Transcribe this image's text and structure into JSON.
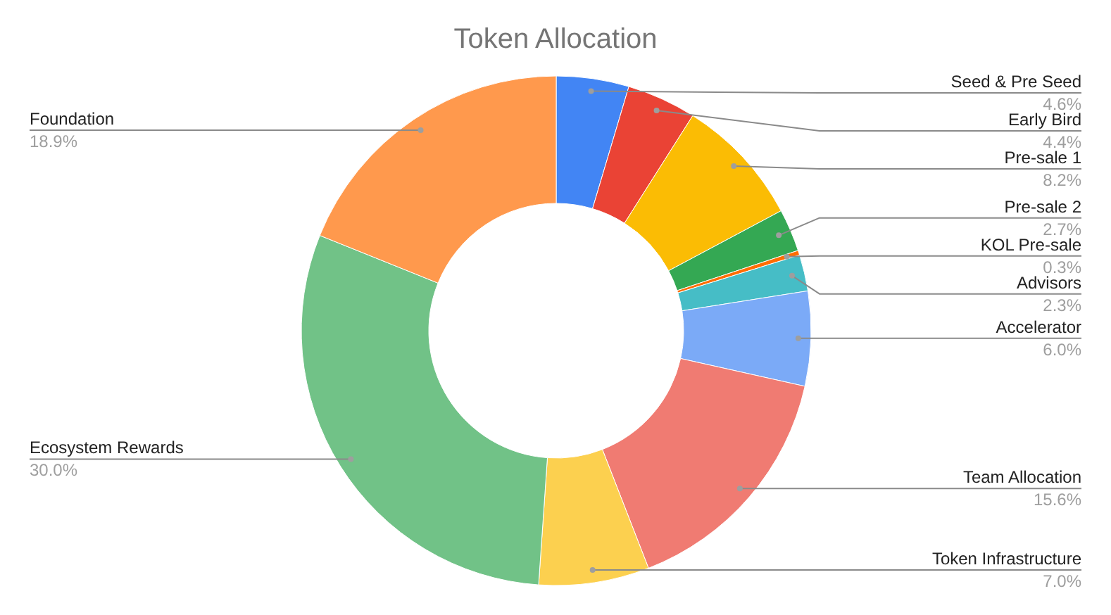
{
  "chart_data": {
    "type": "donut",
    "title": "Token Allocation",
    "categories": [
      "Seed & Pre Seed",
      "Early Bird",
      "Pre-sale 1",
      "Pre-sale 2",
      "KOL Pre-sale",
      "Advisors",
      "Accelerator",
      "Team Allocation",
      "Token Infrastructure",
      "Ecosystem Rewards",
      "Foundation"
    ],
    "values": [
      4.6,
      4.4,
      8.2,
      2.7,
      0.3,
      2.3,
      6.0,
      15.6,
      7.0,
      30.0,
      18.9
    ],
    "value_labels": [
      "4.6%",
      "4.4%",
      "8.2%",
      "2.7%",
      "0.3%",
      "2.3%",
      "6.0%",
      "15.6%",
      "7.0%",
      "30.0%",
      "18.9%"
    ],
    "colors": [
      "#4285f4",
      "#ea4335",
      "#fbbc04",
      "#34a853",
      "#ff6d01",
      "#46bdc6",
      "#7baaf7",
      "#f07b72",
      "#fcd04f",
      "#71c287",
      "#ff994d"
    ]
  }
}
